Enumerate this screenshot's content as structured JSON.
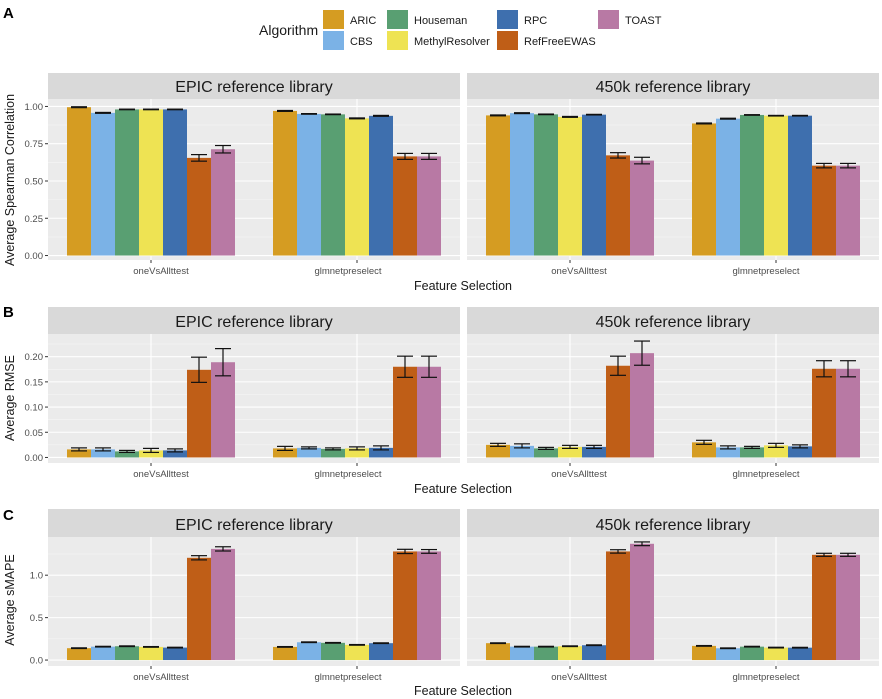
{
  "legend": {
    "title": "Algorithm",
    "items": [
      {
        "name": "ARIC",
        "color": "#D59C22"
      },
      {
        "name": "CBS",
        "color": "#7BB2E6"
      },
      {
        "name": "Houseman",
        "color": "#599F72"
      },
      {
        "name": "MethylResolver",
        "color": "#EEE353"
      },
      {
        "name": "RPC",
        "color": "#3E6FAE"
      },
      {
        "name": "RefFreeEWAS",
        "color": "#BF5E17"
      },
      {
        "name": "TOAST",
        "color": "#B879A4"
      }
    ]
  },
  "chart_data": [
    {
      "type": "bar",
      "panel_label": "A",
      "ylabel": "Average Spearman Correlation",
      "xlabel": "Feature Selection",
      "ylim": [
        -0.03,
        1.05
      ],
      "yticks": [
        0.0,
        0.25,
        0.5,
        0.75,
        1.0
      ],
      "ytick_labels": [
        "0.00",
        "0.25",
        "0.50",
        "0.75",
        "1.00"
      ],
      "categories": [
        "oneVsAllttest",
        "glmnetpreselect"
      ],
      "facets": [
        {
          "title": "EPIC reference library",
          "series": [
            {
              "name": "ARIC",
              "values": [
                0.995,
                0.97
              ],
              "err": [
                0.003,
                0.003
              ]
            },
            {
              "name": "CBS",
              "values": [
                0.957,
                0.95
              ],
              "err": [
                0.003,
                0.002
              ]
            },
            {
              "name": "Houseman",
              "values": [
                0.98,
                0.947
              ],
              "err": [
                0.002,
                0.002
              ]
            },
            {
              "name": "MethylResolver",
              "values": [
                0.98,
                0.92
              ],
              "err": [
                0.002,
                0.003
              ]
            },
            {
              "name": "RPC",
              "values": [
                0.98,
                0.937
              ],
              "err": [
                0.002,
                0.003
              ]
            },
            {
              "name": "RefFreeEWAS",
              "values": [
                0.655,
                0.665
              ],
              "err": [
                0.022,
                0.02
              ]
            },
            {
              "name": "TOAST",
              "values": [
                0.713,
                0.665
              ],
              "err": [
                0.025,
                0.02
              ]
            }
          ]
        },
        {
          "title": "450k reference library",
          "series": [
            {
              "name": "ARIC",
              "values": [
                0.94,
                0.886
              ],
              "err": [
                0.003,
                0.003
              ]
            },
            {
              "name": "CBS",
              "values": [
                0.955,
                0.918
              ],
              "err": [
                0.003,
                0.003
              ]
            },
            {
              "name": "Houseman",
              "values": [
                0.947,
                0.943
              ],
              "err": [
                0.002,
                0.002
              ]
            },
            {
              "name": "MethylResolver",
              "values": [
                0.93,
                0.938
              ],
              "err": [
                0.003,
                0.002
              ]
            },
            {
              "name": "RPC",
              "values": [
                0.945,
                0.938
              ],
              "err": [
                0.002,
                0.002
              ]
            },
            {
              "name": "RefFreeEWAS",
              "values": [
                0.672,
                0.603
              ],
              "err": [
                0.018,
                0.015
              ]
            },
            {
              "name": "TOAST",
              "values": [
                0.637,
                0.603
              ],
              "err": [
                0.022,
                0.015
              ]
            }
          ]
        }
      ]
    },
    {
      "type": "bar",
      "panel_label": "B",
      "ylabel": "Average RMSE",
      "xlabel": "Feature Selection",
      "ylim": [
        -0.011,
        0.245
      ],
      "yticks": [
        0.0,
        0.05,
        0.1,
        0.15,
        0.2
      ],
      "ytick_labels": [
        "0.00",
        "0.05",
        "0.10",
        "0.15",
        "0.20"
      ],
      "categories": [
        "oneVsAllttest",
        "glmnetpreselect"
      ],
      "facets": [
        {
          "title": "EPIC reference library",
          "series": [
            {
              "name": "ARIC",
              "values": [
                0.016,
                0.018
              ],
              "err": [
                0.003,
                0.004
              ]
            },
            {
              "name": "CBS",
              "values": [
                0.016,
                0.019
              ],
              "err": [
                0.003,
                0.002
              ]
            },
            {
              "name": "Houseman",
              "values": [
                0.012,
                0.017
              ],
              "err": [
                0.002,
                0.002
              ]
            },
            {
              "name": "MethylResolver",
              "values": [
                0.014,
                0.018
              ],
              "err": [
                0.004,
                0.003
              ]
            },
            {
              "name": "RPC",
              "values": [
                0.014,
                0.019
              ],
              "err": [
                0.003,
                0.004
              ]
            },
            {
              "name": "RefFreeEWAS",
              "values": [
                0.174,
                0.18
              ],
              "err": [
                0.025,
                0.021
              ]
            },
            {
              "name": "TOAST",
              "values": [
                0.189,
                0.18
              ],
              "err": [
                0.027,
                0.021
              ]
            }
          ]
        },
        {
          "title": "450k reference library",
          "series": [
            {
              "name": "ARIC",
              "values": [
                0.025,
                0.03
              ],
              "err": [
                0.003,
                0.004
              ]
            },
            {
              "name": "CBS",
              "values": [
                0.023,
                0.02
              ],
              "err": [
                0.004,
                0.003
              ]
            },
            {
              "name": "Houseman",
              "values": [
                0.018,
                0.02
              ],
              "err": [
                0.002,
                0.002
              ]
            },
            {
              "name": "MethylResolver",
              "values": [
                0.021,
                0.024
              ],
              "err": [
                0.003,
                0.004
              ]
            },
            {
              "name": "RPC",
              "values": [
                0.021,
                0.022
              ],
              "err": [
                0.003,
                0.003
              ]
            },
            {
              "name": "RefFreeEWAS",
              "values": [
                0.182,
                0.176
              ],
              "err": [
                0.019,
                0.016
              ]
            },
            {
              "name": "TOAST",
              "values": [
                0.207,
                0.176
              ],
              "err": [
                0.024,
                0.016
              ]
            }
          ]
        }
      ]
    },
    {
      "type": "bar",
      "panel_label": "C",
      "ylabel": "Average sMAPE",
      "xlabel": "Feature Selection",
      "ylim": [
        -0.07,
        1.45
      ],
      "yticks": [
        0.0,
        0.5,
        1.0
      ],
      "ytick_labels": [
        "0.0",
        "0.5",
        "1.0"
      ],
      "categories": [
        "oneVsAllttest",
        "glmnetpreselect"
      ],
      "facets": [
        {
          "title": "EPIC reference library",
          "series": [
            {
              "name": "ARIC",
              "values": [
                0.14,
                0.155
              ],
              "err": [
                0.004,
                0.004
              ]
            },
            {
              "name": "CBS",
              "values": [
                0.158,
                0.21
              ],
              "err": [
                0.004,
                0.004
              ]
            },
            {
              "name": "Houseman",
              "values": [
                0.163,
                0.203
              ],
              "err": [
                0.004,
                0.004
              ]
            },
            {
              "name": "MethylResolver",
              "values": [
                0.155,
                0.179
              ],
              "err": [
                0.004,
                0.004
              ]
            },
            {
              "name": "RPC",
              "values": [
                0.147,
                0.199
              ],
              "err": [
                0.004,
                0.004
              ]
            },
            {
              "name": "RefFreeEWAS",
              "values": [
                1.205,
                1.28
              ],
              "err": [
                0.025,
                0.025
              ]
            },
            {
              "name": "TOAST",
              "values": [
                1.31,
                1.28
              ],
              "err": [
                0.025,
                0.022
              ]
            }
          ]
        },
        {
          "title": "450k reference library",
          "series": [
            {
              "name": "ARIC",
              "values": [
                0.199,
                0.167
              ],
              "err": [
                0.004,
                0.004
              ]
            },
            {
              "name": "CBS",
              "values": [
                0.158,
                0.139
              ],
              "err": [
                0.004,
                0.004
              ]
            },
            {
              "name": "Houseman",
              "values": [
                0.158,
                0.158
              ],
              "err": [
                0.004,
                0.004
              ]
            },
            {
              "name": "MethylResolver",
              "values": [
                0.163,
                0.147
              ],
              "err": [
                0.004,
                0.004
              ]
            },
            {
              "name": "RPC",
              "values": [
                0.175,
                0.146
              ],
              "err": [
                0.004,
                0.004
              ]
            },
            {
              "name": "RefFreeEWAS",
              "values": [
                1.28,
                1.24
              ],
              "err": [
                0.02,
                0.018
              ]
            },
            {
              "name": "TOAST",
              "values": [
                1.37,
                1.24
              ],
              "err": [
                0.022,
                0.018
              ]
            }
          ]
        }
      ]
    }
  ]
}
